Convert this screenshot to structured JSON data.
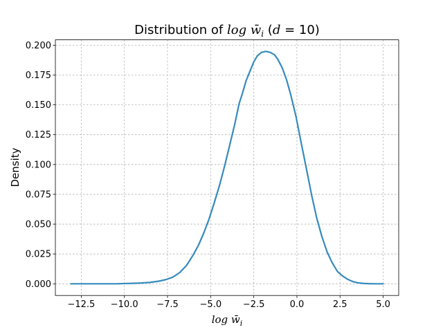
{
  "chart_data": {
    "type": "line",
    "title": {
      "prefix": "Distribution of ",
      "math": "log w̄",
      "math_sub": "i",
      "paren_open": " (",
      "paren_math": "d",
      "paren_rest": " = 10)"
    },
    "xlabel": {
      "math": "log w̄",
      "sub": "i"
    },
    "ylabel": "Density",
    "xlim": [
      -14.0,
      5.9
    ],
    "ylim": [
      -0.0098,
      0.2045
    ],
    "xticks": [
      -12.5,
      -10.0,
      -7.5,
      -5.0,
      -2.5,
      0.0,
      2.5,
      5.0
    ],
    "xtick_labels": [
      "−12.5",
      "−10.0",
      "−7.5",
      "−5.0",
      "−2.5",
      "0.0",
      "2.5",
      "5.0"
    ],
    "yticks": [
      0.0,
      0.025,
      0.05,
      0.075,
      0.1,
      0.125,
      0.15,
      0.175,
      0.2
    ],
    "ytick_labels": [
      "0.000",
      "0.025",
      "0.050",
      "0.075",
      "0.100",
      "0.125",
      "0.150",
      "0.175",
      "0.200"
    ],
    "grid": true,
    "colors": {
      "line": "#348ABD",
      "grid": "#b0b0b0"
    },
    "series": [
      {
        "x": [
          -13.1,
          -12.5,
          -12.0,
          -11.5,
          -11.0,
          -10.5,
          -10.0,
          -9.5,
          -9.0,
          -8.5,
          -8.0,
          -7.6,
          -7.2,
          -6.8,
          -6.4,
          -6.0,
          -5.7,
          -5.4,
          -5.1,
          -4.8,
          -4.5,
          -4.2,
          -3.9,
          -3.6,
          -3.35,
          -3.15,
          -2.95,
          -2.7,
          -2.5,
          -2.3,
          -2.05,
          -1.8,
          -1.55,
          -1.3,
          -1.1,
          -0.85,
          -0.6,
          -0.35,
          -0.05,
          0.25,
          0.55,
          0.85,
          1.15,
          1.45,
          1.75,
          2.05,
          2.35,
          2.65,
          2.95,
          3.25,
          3.55,
          3.85,
          4.2,
          4.6,
          5.0
        ],
        "y": [
          0.0,
          0.0,
          0.0,
          0.0,
          0.0,
          0.0,
          0.0002,
          0.0004,
          0.0007,
          0.0012,
          0.0022,
          0.0035,
          0.0055,
          0.0093,
          0.0153,
          0.0245,
          0.0325,
          0.0425,
          0.054,
          0.0675,
          0.0818,
          0.0982,
          0.116,
          0.134,
          0.151,
          0.16,
          0.17,
          0.179,
          0.186,
          0.191,
          0.194,
          0.1948,
          0.194,
          0.192,
          0.188,
          0.181,
          0.171,
          0.158,
          0.14,
          0.118,
          0.0965,
          0.0745,
          0.055,
          0.0395,
          0.0267,
          0.0175,
          0.0103,
          0.0065,
          0.0037,
          0.0018,
          0.0008,
          0.0003,
          0.0001,
          0.0,
          0.0
        ]
      }
    ]
  }
}
